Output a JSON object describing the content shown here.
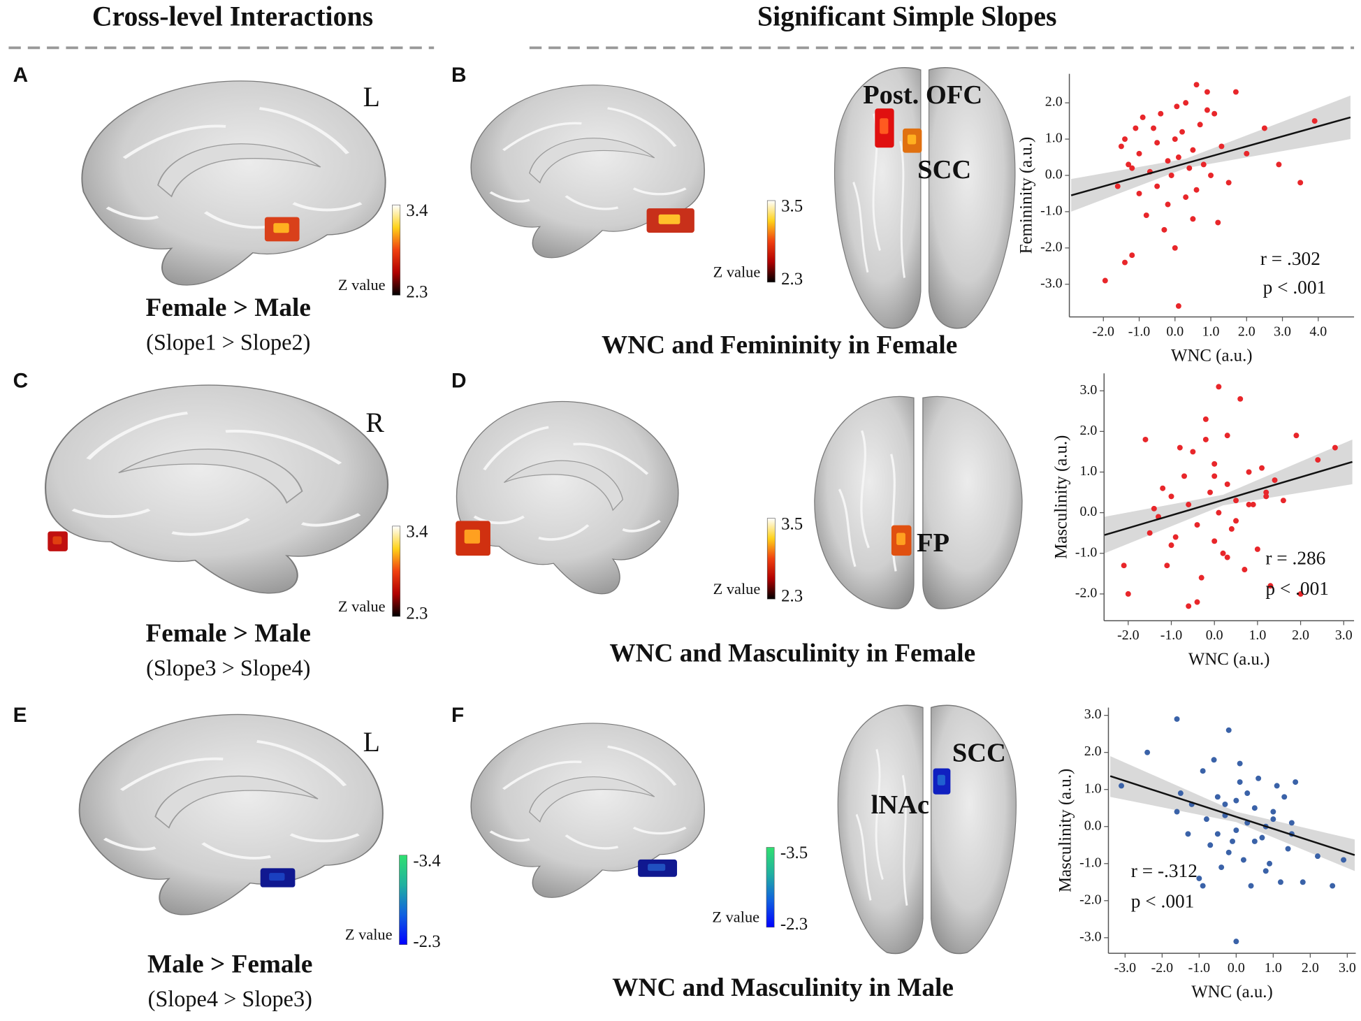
{
  "headers": {
    "left": "Cross-level Interactions",
    "right": "Significant Simple Slopes"
  },
  "panels": [
    {
      "letter": "A",
      "hemisphere": "L",
      "colorbar": {
        "top": 3.4,
        "bottom": 2.3,
        "label": "Z value",
        "colors": [
          "#000000",
          "#b00000",
          "#f04010",
          "#ffd21a",
          "#ffffff"
        ]
      },
      "caption": "Female > Male",
      "subcaption": "(Slope1 > Slope2)"
    },
    {
      "letter": "B",
      "colorbar": {
        "top": 3.5,
        "bottom": 2.3,
        "label": "Z value",
        "colors": [
          "#000000",
          "#b00000",
          "#f04010",
          "#ffd21a",
          "#ffffff"
        ]
      },
      "regions": [
        "Post. OFC",
        "SCC"
      ],
      "caption": "WNC and Femininity in Female"
    },
    {
      "letter": "C",
      "hemisphere": "R",
      "colorbar": {
        "top": 3.4,
        "bottom": 2.3,
        "label": "Z value",
        "colors": [
          "#000000",
          "#b00000",
          "#f04010",
          "#ffd21a",
          "#ffffff"
        ]
      },
      "caption": "Female > Male",
      "subcaption": "(Slope3 > Slope4)"
    },
    {
      "letter": "D",
      "colorbar": {
        "top": 3.5,
        "bottom": 2.3,
        "label": "Z value",
        "colors": [
          "#000000",
          "#b00000",
          "#f04010",
          "#ffd21a",
          "#ffffff"
        ]
      },
      "regions": [
        "FP"
      ],
      "caption": "WNC and Masculinity in Female"
    },
    {
      "letter": "E",
      "hemisphere": "L",
      "colorbar": {
        "top": -3.4,
        "bottom": -2.3,
        "label": "Z value",
        "colors": [
          "#0000ff",
          "#1060e0",
          "#20b0a0",
          "#30e070"
        ]
      },
      "caption": "Male > Female",
      "subcaption": "(Slope4 > Slope3)"
    },
    {
      "letter": "F",
      "colorbar": {
        "top": -3.5,
        "bottom": -2.3,
        "label": "Z value",
        "colors": [
          "#0000ff",
          "#1060e0",
          "#20b0a0",
          "#30e070"
        ]
      },
      "regions": [
        "SCC",
        "lNAc"
      ],
      "caption": "WNC and Masculinity in Male"
    }
  ],
  "chart_data": [
    {
      "type": "scatter",
      "xlabel": "WNC (a.u.)",
      "ylabel": "Femininity (a.u.)",
      "color": "#e8262a",
      "xlim": [
        -2.95,
        5.0
      ],
      "ylim": [
        -3.9,
        2.8
      ],
      "xticks": [
        {
          "value": -2,
          "label": "-2.0"
        },
        {
          "value": -1,
          "label": "-1.0"
        },
        {
          "value": 0,
          "label": "0.0"
        },
        {
          "value": 1,
          "label": "1.0"
        },
        {
          "value": 2,
          "label": "2.0"
        },
        {
          "value": 3,
          "label": "3.0"
        },
        {
          "value": 4,
          "label": "4.0"
        }
      ],
      "yticks": [
        {
          "value": 2,
          "label": "2.0"
        },
        {
          "value": 1,
          "label": "1.0"
        },
        {
          "value": 0,
          "label": "0.0"
        },
        {
          "value": -1,
          "label": "-1.0"
        },
        {
          "value": -2,
          "label": "-2.0"
        },
        {
          "value": -3,
          "label": "-3.0"
        }
      ],
      "x": [
        -1.95,
        -1.6,
        -1.5,
        -1.4,
        -1.3,
        -1.2,
        -1.1,
        -1.0,
        -1.0,
        -0.9,
        -0.8,
        -0.7,
        -0.6,
        -0.5,
        -0.5,
        -0.4,
        -0.3,
        -0.2,
        -0.1,
        0.0,
        0.0,
        0.1,
        0.1,
        0.2,
        0.3,
        0.3,
        0.4,
        0.5,
        0.5,
        0.6,
        0.7,
        0.8,
        0.9,
        1.0,
        1.1,
        1.2,
        1.3,
        1.5,
        1.7,
        2.0,
        2.5,
        2.9,
        3.5,
        3.9,
        -1.4,
        -0.2,
        0.05,
        0.6,
        -1.2,
        0.9
      ],
      "values": [
        -2.9,
        -0.3,
        0.8,
        1.0,
        0.3,
        -2.2,
        1.3,
        -0.5,
        0.6,
        1.6,
        -1.1,
        0.1,
        1.3,
        -0.3,
        0.9,
        1.7,
        -1.5,
        0.4,
        0.0,
        -2.0,
        1.0,
        -3.6,
        0.5,
        1.2,
        -0.6,
        2.0,
        0.2,
        0.7,
        -1.2,
        2.5,
        1.4,
        0.3,
        1.8,
        0.0,
        1.7,
        -1.3,
        0.8,
        -0.2,
        2.3,
        0.6,
        1.3,
        0.3,
        -0.2,
        1.5,
        -2.4,
        -0.8,
        1.9,
        -0.4,
        0.2,
        2.3
      ],
      "fit": {
        "x": [
          -2.9,
          4.9
        ],
        "y": [
          -0.55,
          1.6
        ],
        "color": "#111111"
      },
      "ci": {
        "x": [
          -2.9,
          0.3,
          4.9
        ],
        "lower": [
          -1.0,
          0.2,
          1.0
        ],
        "upper": [
          -0.1,
          0.46,
          2.2
        ],
        "color": "#cfcfcf"
      },
      "annotations": [
        "r = .302",
        "p < .001"
      ]
    },
    {
      "type": "scatter",
      "xlabel": "WNC (a.u.)",
      "ylabel": "Masculinity (a.u.)",
      "color": "#e8262a",
      "xlim": [
        -2.56,
        3.24
      ],
      "ylim": [
        -2.66,
        3.43
      ],
      "xticks": [
        {
          "value": -2,
          "label": "-2.0"
        },
        {
          "value": -1,
          "label": "-1.0"
        },
        {
          "value": 0,
          "label": "0.0"
        },
        {
          "value": 1,
          "label": "1.0"
        },
        {
          "value": 2,
          "label": "2.0"
        },
        {
          "value": 3,
          "label": "3.0"
        }
      ],
      "yticks": [
        {
          "value": 3,
          "label": "3.0"
        },
        {
          "value": 2,
          "label": "2.0"
        },
        {
          "value": 1,
          "label": "1.0"
        },
        {
          "value": 0,
          "label": "0.0"
        },
        {
          "value": -1,
          "label": "-1.0"
        },
        {
          "value": -2,
          "label": "-2.0"
        }
      ],
      "x": [
        -2.1,
        -2.0,
        -1.6,
        -1.5,
        -1.4,
        -1.2,
        -1.1,
        -1.0,
        -0.9,
        -0.8,
        -0.7,
        -0.6,
        -0.6,
        -0.5,
        -0.4,
        -0.3,
        -0.2,
        -0.1,
        0.0,
        0.0,
        0.1,
        0.1,
        0.2,
        0.3,
        0.3,
        0.4,
        0.5,
        0.6,
        0.7,
        0.8,
        0.9,
        1.0,
        1.1,
        1.2,
        1.3,
        1.4,
        1.6,
        1.9,
        2.4,
        2.8,
        -0.4,
        0.0,
        -1.0,
        0.5,
        1.2,
        -0.2,
        0.8,
        0.3,
        -1.3,
        2.0
      ],
      "values": [
        -1.3,
        -2.0,
        1.8,
        -0.5,
        0.1,
        0.6,
        -1.3,
        0.4,
        -0.6,
        1.6,
        0.9,
        -2.3,
        0.2,
        1.5,
        -0.3,
        -1.6,
        2.3,
        0.5,
        -0.7,
        1.2,
        3.1,
        0.0,
        -1.0,
        1.9,
        0.7,
        -0.4,
        0.3,
        2.8,
        -1.4,
        1.0,
        0.2,
        -0.9,
        1.1,
        0.4,
        -1.8,
        0.8,
        0.3,
        1.9,
        1.3,
        1.6,
        -2.2,
        0.9,
        -0.8,
        -0.2,
        0.5,
        1.8,
        0.2,
        -1.1,
        -0.1,
        -2.0
      ],
      "fit": {
        "x": [
          -2.55,
          3.2
        ],
        "y": [
          -0.55,
          1.25
        ],
        "color": "#111111"
      },
      "ci": {
        "x": [
          -2.55,
          0.2,
          3.2
        ],
        "lower": [
          -1.0,
          0.18,
          0.7
        ],
        "upper": [
          -0.1,
          0.44,
          1.8
        ],
        "color": "#cfcfcf"
      },
      "annotations": [
        "r = .286",
        "p < .001"
      ]
    },
    {
      "type": "scatter",
      "xlabel": "WNC (a.u.)",
      "ylabel": "Masculinity (a.u.)",
      "color": "#3a62a8",
      "xlim": [
        -3.45,
        3.23
      ],
      "ylim": [
        -3.42,
        3.21
      ],
      "xticks": [
        {
          "value": -3,
          "label": "-3.0"
        },
        {
          "value": -2,
          "label": "-2.0"
        },
        {
          "value": -1,
          "label": "-1.0"
        },
        {
          "value": 0,
          "label": "0.0"
        },
        {
          "value": 1,
          "label": "1.0"
        },
        {
          "value": 2,
          "label": "2.0"
        },
        {
          "value": 3,
          "label": "3.0"
        }
      ],
      "yticks": [
        {
          "value": 3,
          "label": "3.0"
        },
        {
          "value": 2,
          "label": "2.0"
        },
        {
          "value": 1,
          "label": "1.0"
        },
        {
          "value": 0,
          "label": "0.0"
        },
        {
          "value": -1,
          "label": "-1.0"
        },
        {
          "value": -2,
          "label": "-2.0"
        },
        {
          "value": -3,
          "label": "-3.0"
        }
      ],
      "x": [
        -3.1,
        -2.4,
        -1.6,
        -1.5,
        -1.3,
        -1.2,
        -1.0,
        -0.9,
        -0.8,
        -0.7,
        -0.6,
        -0.5,
        -0.4,
        -0.3,
        -0.2,
        -0.1,
        0.0,
        0.0,
        0.1,
        0.2,
        0.3,
        0.4,
        0.5,
        0.6,
        0.7,
        0.8,
        0.9,
        1.0,
        1.1,
        1.2,
        1.3,
        1.4,
        1.5,
        1.6,
        1.8,
        2.2,
        2.6,
        2.9,
        -0.2,
        0.1,
        -1.6,
        0.5,
        1.0,
        -0.9,
        0.3,
        1.5,
        -0.5,
        0.8,
        -0.3,
        0.0
      ],
      "values": [
        1.1,
        2.0,
        2.9,
        0.9,
        -0.2,
        0.6,
        -1.4,
        1.5,
        0.2,
        -0.5,
        1.8,
        0.8,
        -1.1,
        0.3,
        2.6,
        -0.4,
        0.7,
        -3.1,
        1.2,
        -0.9,
        0.1,
        -1.6,
        0.5,
        1.3,
        -0.3,
        0.0,
        -1.0,
        0.4,
        1.1,
        -1.5,
        0.8,
        -0.6,
        -0.2,
        1.2,
        -1.5,
        -0.8,
        -1.6,
        -0.9,
        -0.7,
        1.7,
        0.4,
        -0.4,
        0.2,
        -1.6,
        0.9,
        0.1,
        -0.2,
        -1.2,
        0.6,
        -0.1
      ],
      "fit": {
        "x": [
          -3.4,
          3.2
        ],
        "y": [
          1.36,
          -0.77
        ],
        "color": "#111111"
      },
      "ci": {
        "x": [
          -3.4,
          0.0,
          3.2
        ],
        "lower": [
          0.8,
          0.12,
          -1.2
        ],
        "upper": [
          1.9,
          0.4,
          -0.35
        ],
        "color": "#cfcfcf"
      },
      "annotations": [
        "r = -.312",
        "p  < .001"
      ]
    }
  ]
}
